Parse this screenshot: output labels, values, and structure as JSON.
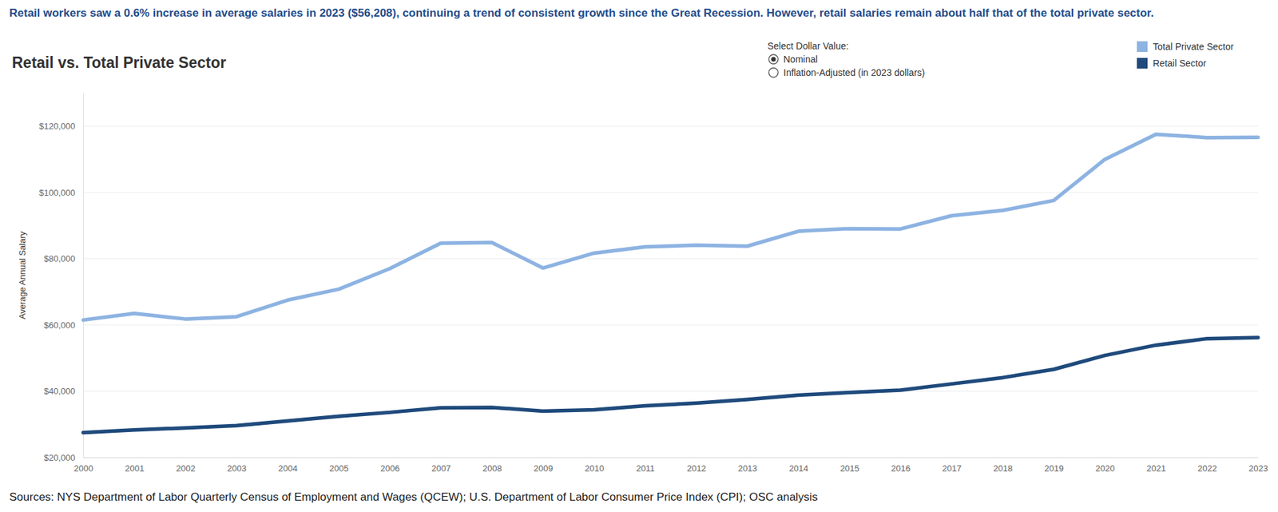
{
  "chart_data": {
    "type": "line",
    "subtitle": "Retail workers saw a 0.6% increase in average salaries in 2023 ($56,208), continuing a trend of consistent growth since the Great Recession. However, retail salaries remain about half that of the total private sector.",
    "title": "Retail vs. Total Private Sector",
    "y_label": "Average Annual Salary",
    "annotations": [
      "Select Dollar Value:",
      "Nominal",
      "Inflation-Adjusted (in 2023 dollars)"
    ],
    "source": "Sources: NYS Department of Labor Quarterly Census of Employment and Wages (QCEW); U.S. Department of Labor Consumer Price Index (CPI); OSC analysis",
    "categories": [
      "2000",
      "2001",
      "2002",
      "2003",
      "2004",
      "2005",
      "2006",
      "2007",
      "2008",
      "2009",
      "2010",
      "2011",
      "2012",
      "2013",
      "2014",
      "2015",
      "2016",
      "2017",
      "2018",
      "2019",
      "2020",
      "2021",
      "2022",
      "2023"
    ],
    "series": [
      {
        "name": "Total Private Sector",
        "color": "#8db3e2",
        "values": [
          61500,
          63500,
          61800,
          62500,
          67500,
          70800,
          77000,
          84700,
          84900,
          77200,
          81700,
          83600,
          84100,
          83800,
          88300,
          89100,
          89000,
          93000,
          94600,
          97600,
          110000,
          117600,
          116600,
          116700
        ]
      },
      {
        "name": "Retail Sector",
        "color": "#1f4a7c",
        "values": [
          27500,
          28300,
          28900,
          29600,
          31000,
          32400,
          33600,
          35000,
          35100,
          34000,
          34400,
          35600,
          36400,
          37500,
          38800,
          39600,
          40300,
          42200,
          44100,
          46600,
          50800,
          53900,
          55870,
          56208
        ]
      }
    ],
    "ylim": [
      20000,
      130000
    ],
    "yticks": [
      {
        "value": 20000,
        "label": "$20,000"
      },
      {
        "value": 40000,
        "label": "$40,000"
      },
      {
        "value": 60000,
        "label": "$60,000"
      },
      {
        "value": 80000,
        "label": "$80,000"
      },
      {
        "value": 100000,
        "label": "$100,000"
      },
      {
        "value": 120000,
        "label": "$120,000"
      }
    ],
    "grid": true,
    "legend": "top-right"
  }
}
